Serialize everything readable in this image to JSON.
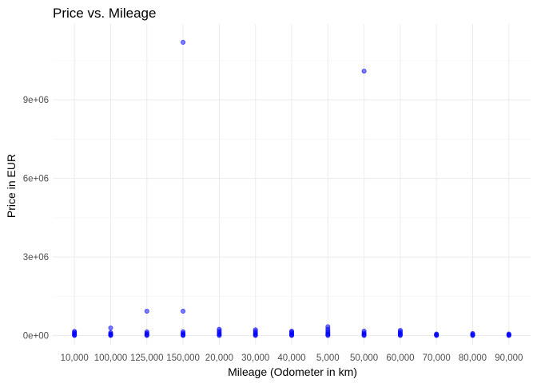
{
  "chart_data": {
    "type": "scatter",
    "title": "Price vs. Mileage",
    "xlabel": "Mileage (Odometer in km)",
    "ylabel": "Price in EUR",
    "categories": [
      "10,000",
      "100,000",
      "125,000",
      "150,000",
      "20,000",
      "30,000",
      "40,000",
      "5,000",
      "50,000",
      "60,000",
      "70,000",
      "80,000",
      "90,000"
    ],
    "y_ticks": [
      0,
      3000000,
      6000000,
      9000000
    ],
    "y_tick_labels": [
      "0e+00",
      "3e+06",
      "6e+06",
      "9e+06"
    ],
    "ylim": [
      -350000,
      11900000
    ],
    "grid": true,
    "legend": "none",
    "colors": {
      "points": "#0000ff",
      "grid": "#ebebeb"
    },
    "points": [
      {
        "x": "10,000",
        "y": 0
      },
      {
        "x": "10,000",
        "y": 20000
      },
      {
        "x": "10,000",
        "y": 45000
      },
      {
        "x": "10,000",
        "y": 80000
      },
      {
        "x": "10,000",
        "y": 120000
      },
      {
        "x": "10,000",
        "y": 160000
      },
      {
        "x": "100,000",
        "y": 0
      },
      {
        "x": "100,000",
        "y": 20000
      },
      {
        "x": "100,000",
        "y": 45000
      },
      {
        "x": "100,000",
        "y": 70000
      },
      {
        "x": "100,000",
        "y": 110000
      },
      {
        "x": "100,000",
        "y": 290000
      },
      {
        "x": "125,000",
        "y": 0
      },
      {
        "x": "125,000",
        "y": 25000
      },
      {
        "x": "125,000",
        "y": 55000
      },
      {
        "x": "125,000",
        "y": 90000
      },
      {
        "x": "125,000",
        "y": 140000
      },
      {
        "x": "125,000",
        "y": 930000
      },
      {
        "x": "150,000",
        "y": 0
      },
      {
        "x": "150,000",
        "y": 20000
      },
      {
        "x": "150,000",
        "y": 50000
      },
      {
        "x": "150,000",
        "y": 90000
      },
      {
        "x": "150,000",
        "y": 150000
      },
      {
        "x": "150,000",
        "y": 930000
      },
      {
        "x": "150,000",
        "y": 11200000
      },
      {
        "x": "20,000",
        "y": 0
      },
      {
        "x": "20,000",
        "y": 30000
      },
      {
        "x": "20,000",
        "y": 70000
      },
      {
        "x": "20,000",
        "y": 120000
      },
      {
        "x": "20,000",
        "y": 180000
      },
      {
        "x": "20,000",
        "y": 240000
      },
      {
        "x": "30,000",
        "y": 0
      },
      {
        "x": "30,000",
        "y": 25000
      },
      {
        "x": "30,000",
        "y": 60000
      },
      {
        "x": "30,000",
        "y": 100000
      },
      {
        "x": "30,000",
        "y": 160000
      },
      {
        "x": "30,000",
        "y": 220000
      },
      {
        "x": "40,000",
        "y": 0
      },
      {
        "x": "40,000",
        "y": 20000
      },
      {
        "x": "40,000",
        "y": 50000
      },
      {
        "x": "40,000",
        "y": 90000
      },
      {
        "x": "40,000",
        "y": 130000
      },
      {
        "x": "40,000",
        "y": 170000
      },
      {
        "x": "5,000",
        "y": 0
      },
      {
        "x": "5,000",
        "y": 30000
      },
      {
        "x": "5,000",
        "y": 70000
      },
      {
        "x": "5,000",
        "y": 120000
      },
      {
        "x": "5,000",
        "y": 180000
      },
      {
        "x": "5,000",
        "y": 250000
      },
      {
        "x": "5,000",
        "y": 340000
      },
      {
        "x": "50,000",
        "y": 0
      },
      {
        "x": "50,000",
        "y": 25000
      },
      {
        "x": "50,000",
        "y": 60000
      },
      {
        "x": "50,000",
        "y": 100000
      },
      {
        "x": "50,000",
        "y": 170000
      },
      {
        "x": "50,000",
        "y": 10100000
      },
      {
        "x": "60,000",
        "y": 0
      },
      {
        "x": "60,000",
        "y": 25000
      },
      {
        "x": "60,000",
        "y": 60000
      },
      {
        "x": "60,000",
        "y": 100000
      },
      {
        "x": "60,000",
        "y": 150000
      },
      {
        "x": "60,000",
        "y": 200000
      },
      {
        "x": "70,000",
        "y": 0
      },
      {
        "x": "70,000",
        "y": 15000
      },
      {
        "x": "70,000",
        "y": 35000
      },
      {
        "x": "70,000",
        "y": 60000
      },
      {
        "x": "80,000",
        "y": 0
      },
      {
        "x": "80,000",
        "y": 20000
      },
      {
        "x": "80,000",
        "y": 45000
      },
      {
        "x": "80,000",
        "y": 80000
      },
      {
        "x": "90,000",
        "y": 0
      },
      {
        "x": "90,000",
        "y": 15000
      },
      {
        "x": "90,000",
        "y": 35000
      },
      {
        "x": "90,000",
        "y": 60000
      }
    ]
  }
}
